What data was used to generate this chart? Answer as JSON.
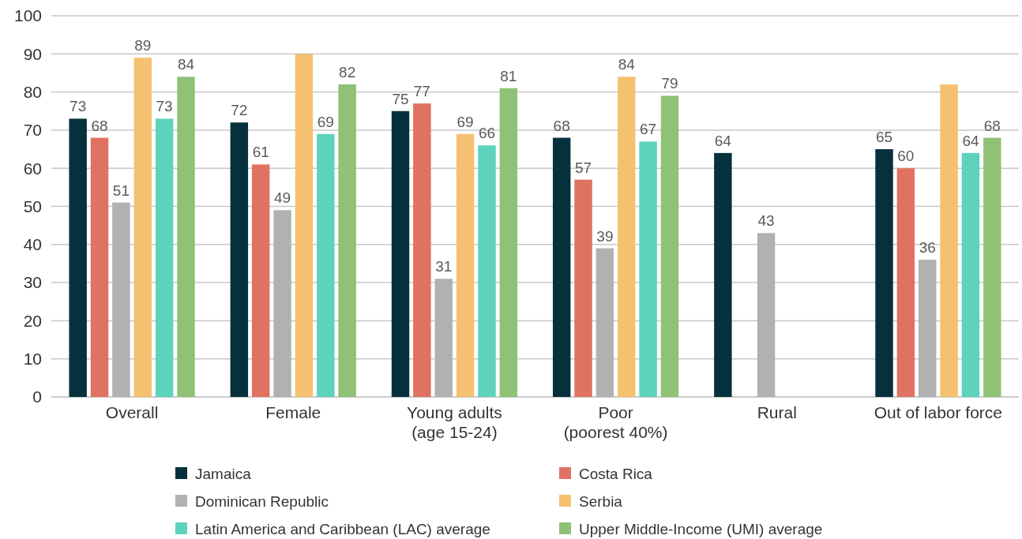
{
  "chart_data": {
    "type": "bar",
    "categories": [
      "Overall",
      "Female",
      "Young adults\n(age 15-24)",
      "Poor\n(poorest 40%)",
      "Rural",
      "Out of labor force"
    ],
    "series": [
      {
        "name": "Jamaica",
        "color": "#07303d",
        "values": [
          73,
          72,
          75,
          68,
          64,
          65
        ],
        "value_labels": [
          "73",
          "72",
          "75",
          "68",
          "64",
          "65"
        ]
      },
      {
        "name": "Costa Rica",
        "color": "#e07262",
        "values": [
          68,
          61,
          77,
          57,
          null,
          60
        ],
        "value_labels": [
          "68",
          "61",
          "77",
          "57",
          null,
          "60"
        ]
      },
      {
        "name": "Dominican Republic",
        "color": "#b1b1b3",
        "values": [
          51,
          49,
          31,
          39,
          43,
          36
        ],
        "value_labels": [
          "51",
          "49",
          "31",
          "39",
          "43",
          "36"
        ]
      },
      {
        "name": "Serbia",
        "color": "#f5c170",
        "values": [
          89,
          90,
          69,
          84,
          null,
          82
        ],
        "value_labels": [
          "89",
          null,
          "69",
          "84",
          null,
          null
        ]
      },
      {
        "name": "Latin America and Caribbean (LAC) average",
        "color": "#5dd3bc",
        "values": [
          73,
          69,
          66,
          67,
          null,
          64
        ],
        "value_labels": [
          "73",
          "69",
          "66",
          "67",
          null,
          "64"
        ]
      },
      {
        "name": "Upper Middle-Income (UMI) average",
        "color": "#8fc177",
        "values": [
          84,
          82,
          81,
          79,
          null,
          68
        ],
        "value_labels": [
          "84",
          "82",
          "81",
          "79",
          null,
          "68"
        ]
      }
    ],
    "ylim": [
      0,
      100
    ],
    "yticks": [
      0,
      10,
      20,
      30,
      40,
      50,
      60,
      70,
      80,
      90,
      100
    ],
    "grid": "y",
    "legend": "bottom"
  }
}
